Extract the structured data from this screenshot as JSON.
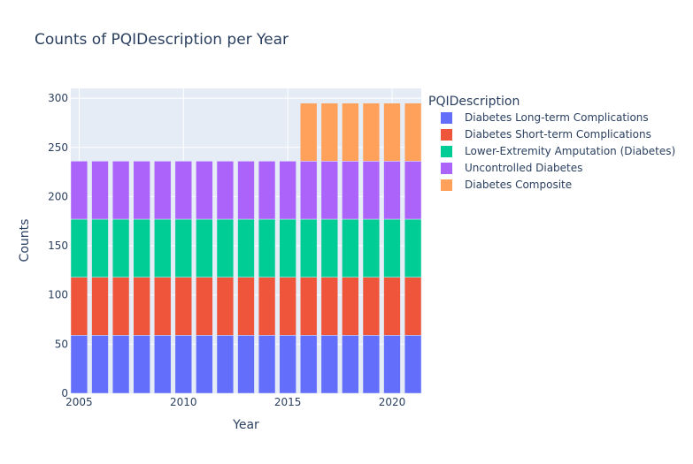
{
  "chart_data": {
    "type": "bar",
    "barmode": "stack",
    "title": "Counts of PQIDescription per Year",
    "xlabel": "Year",
    "ylabel": "Counts",
    "x": [
      2005,
      2006,
      2007,
      2008,
      2009,
      2010,
      2011,
      2012,
      2013,
      2014,
      2015,
      2016,
      2017,
      2018,
      2019,
      2020,
      2021
    ],
    "xticks": [
      2005,
      2010,
      2015,
      2020
    ],
    "xlim": [
      2004.6,
      2021.4
    ],
    "ylim": [
      0,
      310
    ],
    "yticks": [
      0,
      50,
      100,
      150,
      200,
      250,
      300
    ],
    "grid": true,
    "legend": {
      "title": "PQIDescription",
      "position": "right"
    },
    "series": [
      {
        "name": "Diabetes Long-term Complications",
        "color": "#636efa",
        "values": [
          59,
          59,
          59,
          59,
          59,
          59,
          59,
          59,
          59,
          59,
          59,
          59,
          59,
          59,
          59,
          59,
          59
        ]
      },
      {
        "name": "Diabetes Short-term Complications",
        "color": "#EF553B",
        "values": [
          59,
          59,
          59,
          59,
          59,
          59,
          59,
          59,
          59,
          59,
          59,
          59,
          59,
          59,
          59,
          59,
          59
        ]
      },
      {
        "name": "Lower-Extremity Amputation (Diabetes)",
        "color": "#00cc96",
        "values": [
          59,
          59,
          59,
          59,
          59,
          59,
          59,
          59,
          59,
          59,
          59,
          59,
          59,
          59,
          59,
          59,
          59
        ]
      },
      {
        "name": "Uncontrolled Diabetes",
        "color": "#ab63fa",
        "values": [
          59,
          59,
          59,
          59,
          59,
          59,
          59,
          59,
          59,
          59,
          59,
          59,
          59,
          59,
          59,
          59,
          59
        ]
      },
      {
        "name": "Diabetes Composite",
        "color": "#FFA15A",
        "values": [
          0,
          0,
          0,
          0,
          0,
          0,
          0,
          0,
          0,
          0,
          0,
          59,
          59,
          59,
          59,
          59,
          59
        ]
      }
    ]
  }
}
